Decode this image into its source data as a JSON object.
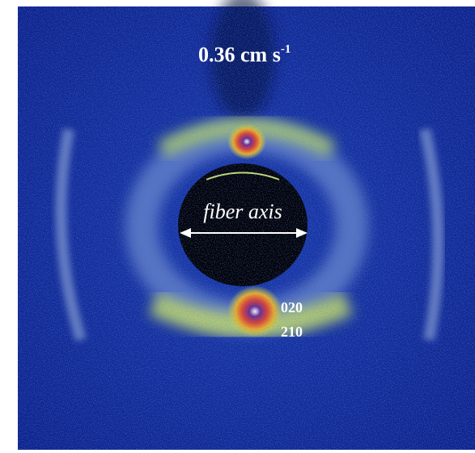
{
  "title": {
    "text": "0.36 cm s",
    "superscript": "-1"
  },
  "annotations": {
    "axis_label": "fiber axis",
    "reflections": [
      "020",
      "210"
    ]
  }
}
